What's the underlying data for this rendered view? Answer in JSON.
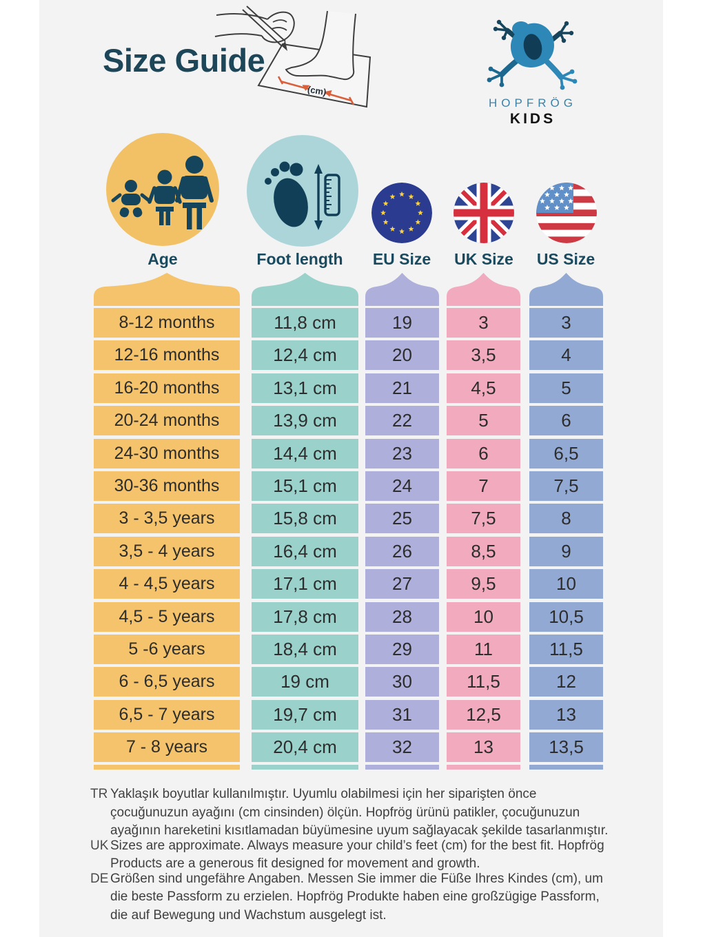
{
  "page": {
    "title": "Size Guide",
    "background_color": "#F3F3F4"
  },
  "brand": {
    "name": "HOPFRÖG",
    "sub": "KIDS"
  },
  "illustration": {
    "unit_label": "(cm)"
  },
  "header": {
    "columns": [
      {
        "key": "age",
        "label": "Age",
        "color": "#F4C36B",
        "circle_color": "#F2C166",
        "icon": "family-age-icon"
      },
      {
        "key": "foot_length",
        "label": "Foot length",
        "color": "#9AD1CB",
        "circle_color": "#ABD5D9",
        "icon": "foot-ruler-icon"
      },
      {
        "key": "eu_size",
        "label": "EU Size",
        "color": "#AFAFDB",
        "icon": "eu-flag-icon"
      },
      {
        "key": "uk_size",
        "label": "UK Size",
        "color": "#F1AABE",
        "icon": "uk-flag-icon"
      },
      {
        "key": "us_size",
        "label": "US Size",
        "color": "#92A9D4",
        "icon": "us-flag-icon"
      }
    ]
  },
  "chart_data": {
    "type": "table",
    "columns": [
      "Age",
      "Foot length",
      "EU Size",
      "UK Size",
      "US Size"
    ],
    "rows": [
      [
        "8-12 months",
        "11,8 cm",
        "19",
        "3",
        "3"
      ],
      [
        "12-16 months",
        "12,4 cm",
        "20",
        "3,5",
        "4"
      ],
      [
        "16-20 months",
        "13,1 cm",
        "21",
        "4,5",
        "5"
      ],
      [
        "20-24 months",
        "13,9 cm",
        "22",
        "5",
        "6"
      ],
      [
        "24-30 months",
        "14,4 cm",
        "23",
        "6",
        "6,5"
      ],
      [
        "30-36 months",
        "15,1 cm",
        "24",
        "7",
        "7,5"
      ],
      [
        "3 - 3,5 years",
        "15,8 cm",
        "25",
        "7,5",
        "8"
      ],
      [
        "3,5 - 4 years",
        "16,4 cm",
        "26",
        "8,5",
        "9"
      ],
      [
        "4 - 4,5 years",
        "17,1 cm",
        "27",
        "9,5",
        "10"
      ],
      [
        "4,5 - 5 years",
        "17,8 cm",
        "28",
        "10",
        "10,5"
      ],
      [
        "5 -6 years",
        "18,4 cm",
        "29",
        "11",
        "11,5"
      ],
      [
        "6 - 6,5 years",
        "19 cm",
        "30",
        "11,5",
        "12"
      ],
      [
        "6,5 - 7 years",
        "19,7 cm",
        "31",
        "12,5",
        "13"
      ],
      [
        "7 - 8 years",
        "20,4 cm",
        "32",
        "13",
        "13,5"
      ]
    ]
  },
  "notes": [
    {
      "lang": "TR",
      "text": "Yaklaşık boyutlar kullanılmıştır. Uyumlu olabilmesi için her siparişten önce çocuğunuzun ayağını (cm cinsinden) ölçün. Hopfrög ürünü patikler, çocuğunuzun ayağının hareketini kısıtlamadan büyümesine uyum sağlayacak şekilde tasarlanmıştır."
    },
    {
      "lang": "UK",
      "text": "Sizes are approximate. Always measure your child’s feet (cm) for the best fit. Hopfrög Products are a generous fit designed for movement and growth."
    },
    {
      "lang": "DE",
      "text": "Größen sind ungefähre Angaben. Messen Sie immer die Füße Ihres Kindes (cm), um die beste Passform zu erzielen. Hopfrög Produkte haben eine großzügige Passform, die auf Bewegung und Wachstum ausgelegt ist."
    }
  ]
}
